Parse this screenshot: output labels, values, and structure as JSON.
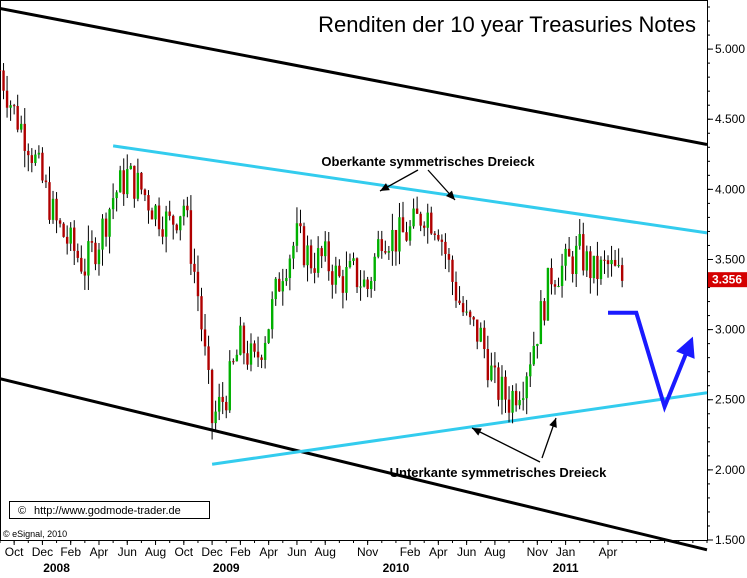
{
  "chart_data": {
    "type": "candlestick",
    "title": "Renditen der 10 year Treasuries Notes",
    "y_ticks": [
      "5.000",
      "4.500",
      "4.000",
      "3.500",
      "3.000",
      "2.500",
      "2.000",
      "1.500"
    ],
    "y_tick_values": [
      5.0,
      4.5,
      4.0,
      3.5,
      3.0,
      2.5,
      2.0,
      1.5
    ],
    "ylim": [
      1.5,
      5.35
    ],
    "x_month_labels": [
      "Oct",
      "Dec",
      "Feb",
      "Apr",
      "Jun",
      "Aug",
      "Oct",
      "Dec",
      "Feb",
      "Apr",
      "Jun",
      "Aug",
      "Nov",
      "Feb",
      "Apr",
      "Jun",
      "Aug",
      "Nov",
      "Jan",
      "Apr"
    ],
    "x_month_dates": [
      "2007-10",
      "2007-12",
      "2008-02",
      "2008-04",
      "2008-06",
      "2008-08",
      "2008-10",
      "2008-12",
      "2009-02",
      "2009-04",
      "2009-06",
      "2009-08",
      "2009-11",
      "2010-02",
      "2010-04",
      "2010-06",
      "2010-08",
      "2010-11",
      "2011-01",
      "2011-04"
    ],
    "x_year_labels": [
      "2008",
      "2009",
      "2010",
      "2011"
    ],
    "x_year_dates": [
      "2008-01",
      "2009-01",
      "2010-01",
      "2011-01"
    ],
    "xlim": [
      "2007-09",
      "2011-11"
    ],
    "last_price": "3.356",
    "colors": {
      "up": "#00b000",
      "down": "#b00000",
      "triangle": "#33ccee",
      "channel": "#000000",
      "projection": "#1a1aff",
      "price_box": "#d40000"
    },
    "price_series": [
      [
        "2007-09",
        4.85
      ],
      [
        "2007-10",
        4.55
      ],
      [
        "2007-11",
        4.35
      ],
      [
        "2007-12",
        4.05
      ],
      [
        "2008-01",
        3.75
      ],
      [
        "2008-02",
        3.6
      ],
      [
        "2008-03",
        3.45
      ],
      [
        "2008-04",
        3.65
      ],
      [
        "2008-05",
        3.95
      ],
      [
        "2008-06",
        4.1
      ],
      [
        "2008-07",
        4.0
      ],
      [
        "2008-08",
        3.85
      ],
      [
        "2008-09",
        3.75
      ],
      [
        "2008-10",
        3.9
      ],
      [
        "2008-11",
        3.25
      ],
      [
        "2008-12",
        2.35
      ],
      [
        "2009-01",
        2.55
      ],
      [
        "2009-02",
        2.9
      ],
      [
        "2009-03",
        2.75
      ],
      [
        "2009-04",
        3.05
      ],
      [
        "2009-05",
        3.45
      ],
      [
        "2009-06",
        3.65
      ],
      [
        "2009-07",
        3.5
      ],
      [
        "2009-08",
        3.5
      ],
      [
        "2009-09",
        3.35
      ],
      [
        "2009-10",
        3.4
      ],
      [
        "2009-11",
        3.3
      ],
      [
        "2009-12",
        3.7
      ],
      [
        "2010-01",
        3.65
      ],
      [
        "2010-02",
        3.7
      ],
      [
        "2010-03",
        3.85
      ],
      [
        "2010-04",
        3.75
      ],
      [
        "2010-05",
        3.35
      ],
      [
        "2010-06",
        3.05
      ],
      [
        "2010-07",
        2.95
      ],
      [
        "2010-08",
        2.6
      ],
      [
        "2010-09",
        2.5
      ],
      [
        "2010-10",
        2.65
      ],
      [
        "2010-11",
        3.0
      ],
      [
        "2010-12",
        3.4
      ],
      [
        "2011-01",
        3.45
      ],
      [
        "2011-02",
        3.55
      ],
      [
        "2011-03",
        3.4
      ],
      [
        "2011-04",
        3.45
      ],
      [
        "2011-05",
        3.356
      ]
    ],
    "triangle_upper": [
      [
        "2008-05",
        4.31
      ],
      [
        "2011-11",
        3.69
      ]
    ],
    "triangle_lower": [
      [
        "2008-12",
        2.04
      ],
      [
        "2011-11",
        2.55
      ]
    ],
    "channel_upper": [
      [
        "2007-09",
        5.29
      ],
      [
        "2011-11",
        4.32
      ]
    ],
    "channel_lower": [
      [
        "2007-09",
        2.65
      ],
      [
        "2011-11",
        1.43
      ]
    ],
    "projection_path": [
      [
        "2011-04",
        3.12
      ],
      [
        "2011-06",
        3.12
      ],
      [
        "2011-08",
        2.45
      ],
      [
        "2011-10",
        2.95
      ]
    ],
    "annotations": {
      "upper": "Oberkante symmetrisches Dreieck",
      "lower": "Unterkante symmetrisches Dreieck"
    }
  },
  "footer": {
    "website": "http://www.godmode-trader.de",
    "copyright_symbol": "©",
    "esignal": "© eSignal, 2010"
  }
}
